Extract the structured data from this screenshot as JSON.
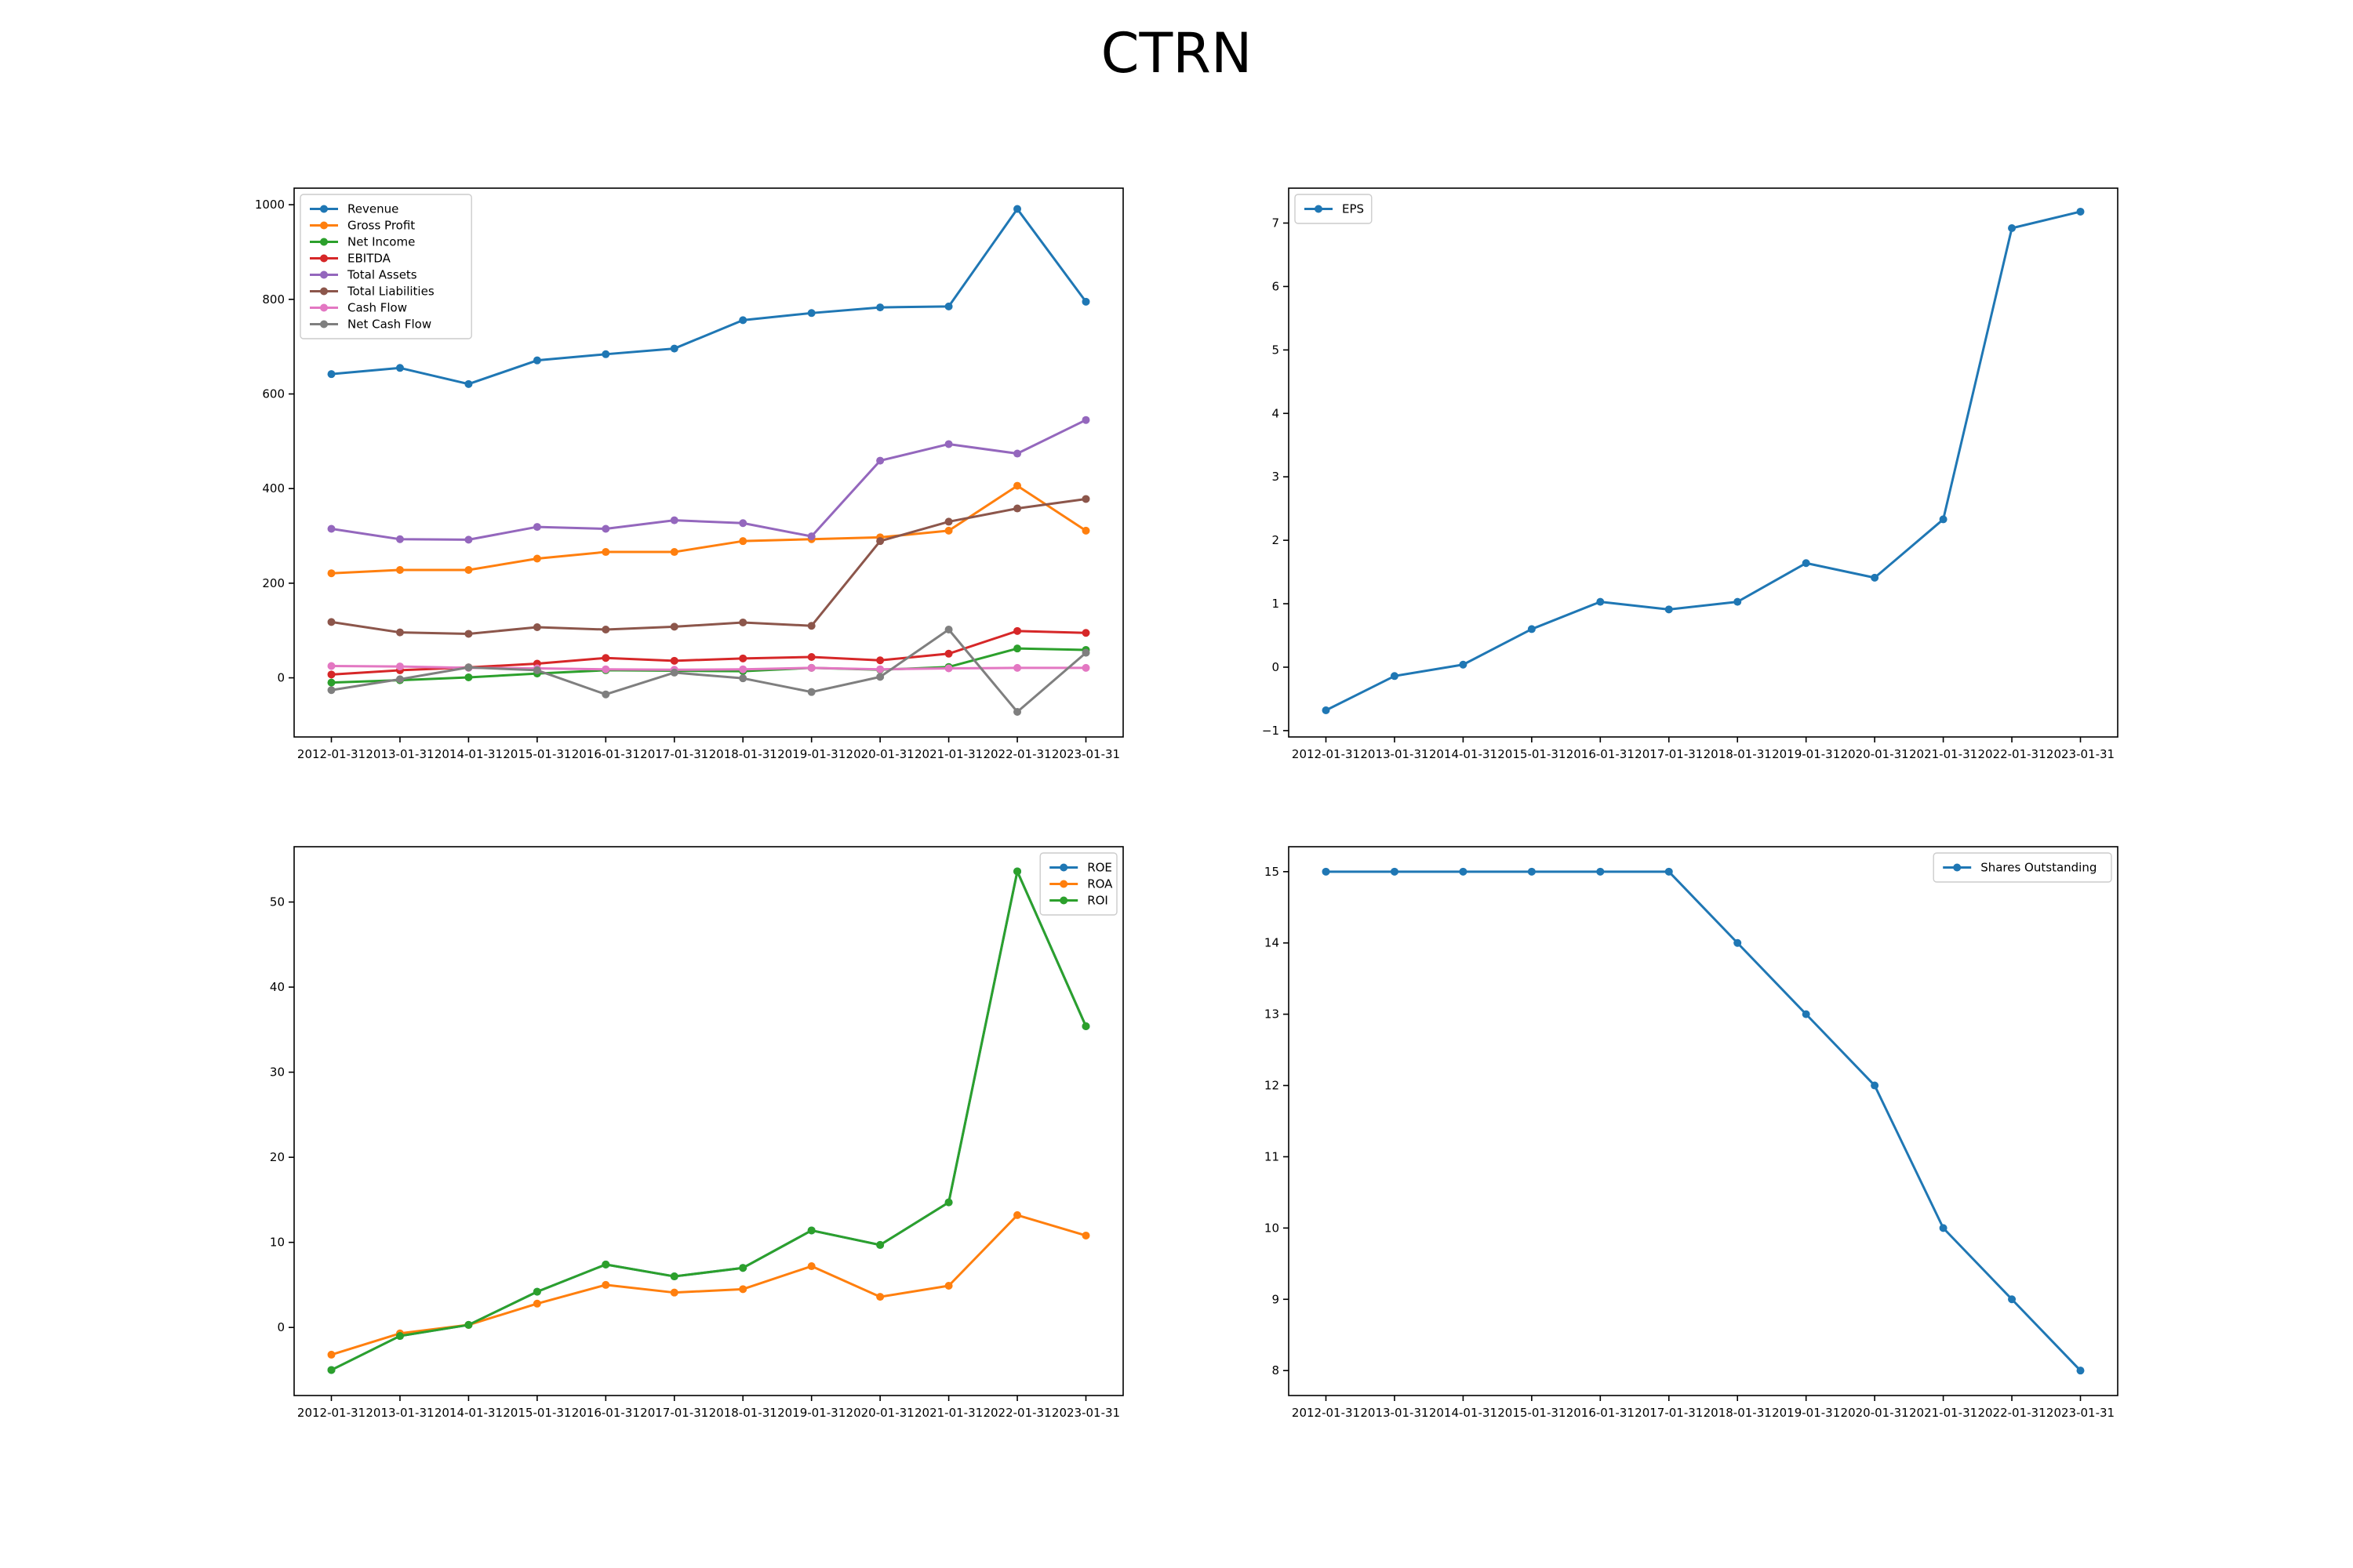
{
  "figure": {
    "title": "CTRN"
  },
  "chart_data": [
    {
      "type": "line",
      "x": [
        "2012-01-31",
        "2013-01-31",
        "2014-01-31",
        "2015-01-31",
        "2016-01-31",
        "2017-01-31",
        "2018-01-31",
        "2019-01-31",
        "2020-01-31",
        "2021-01-31",
        "2022-01-31",
        "2023-01-31"
      ],
      "ylim": [
        -125,
        1035
      ],
      "yticks": [
        0,
        200,
        400,
        600,
        800,
        1000
      ],
      "grid": false,
      "legend": "upper left",
      "series": [
        {
          "name": "Revenue",
          "color": "#1f77b4",
          "values": [
            642,
            655,
            621,
            671,
            684,
            696,
            756,
            771,
            783,
            785,
            991,
            795
          ]
        },
        {
          "name": "Gross Profit",
          "color": "#ff7f0e",
          "values": [
            221,
            228,
            228,
            252,
            266,
            266,
            289,
            293,
            297,
            311,
            406,
            311
          ]
        },
        {
          "name": "Net Income",
          "color": "#2ca02c",
          "values": [
            -10,
            -5,
            1,
            9,
            16,
            15,
            14,
            21,
            17,
            23,
            62,
            59
          ]
        },
        {
          "name": "EBITDA",
          "color": "#d62728",
          "values": [
            7,
            16,
            22,
            30,
            42,
            36,
            41,
            44,
            37,
            51,
            99,
            95
          ]
        },
        {
          "name": "Total Assets",
          "color": "#9467bd",
          "values": [
            315,
            293,
            292,
            319,
            315,
            333,
            327,
            299,
            459,
            494,
            474,
            545
          ]
        },
        {
          "name": "Total Liabilities",
          "color": "#8c564b",
          "values": [
            118,
            96,
            93,
            107,
            102,
            108,
            117,
            110,
            289,
            330,
            358,
            378
          ]
        },
        {
          "name": "Cash Flow",
          "color": "#e377c2",
          "values": [
            25,
            24,
            21,
            20,
            18,
            17,
            18,
            21,
            18,
            20,
            21,
            21
          ]
        },
        {
          "name": "Net Cash Flow",
          "color": "#7f7f7f",
          "values": [
            -26,
            -3,
            22,
            16,
            -35,
            11,
            -1,
            -30,
            2,
            102,
            -72,
            53
          ]
        }
      ]
    },
    {
      "type": "line",
      "x": [
        "2012-01-31",
        "2013-01-31",
        "2014-01-31",
        "2015-01-31",
        "2016-01-31",
        "2017-01-31",
        "2018-01-31",
        "2019-01-31",
        "2020-01-31",
        "2021-01-31",
        "2022-01-31",
        "2023-01-31"
      ],
      "ylim": [
        -1.1,
        7.55
      ],
      "yticks": [
        -1,
        0,
        1,
        2,
        3,
        4,
        5,
        6,
        7
      ],
      "grid": false,
      "legend": "upper left",
      "series": [
        {
          "name": "EPS",
          "color": "#1f77b4",
          "values": [
            -0.68,
            -0.14,
            0.04,
            0.6,
            1.03,
            0.91,
            1.03,
            1.64,
            1.41,
            2.33,
            6.92,
            7.18
          ]
        }
      ]
    },
    {
      "type": "line",
      "x": [
        "2012-01-31",
        "2013-01-31",
        "2014-01-31",
        "2015-01-31",
        "2016-01-31",
        "2017-01-31",
        "2018-01-31",
        "2019-01-31",
        "2020-01-31",
        "2021-01-31",
        "2022-01-31",
        "2023-01-31"
      ],
      "ylim": [
        -8,
        56.5
      ],
      "yticks": [
        0,
        10,
        20,
        30,
        40,
        50
      ],
      "grid": false,
      "legend": "upper right",
      "series": [
        {
          "name": "ROE",
          "color": "#1f77b4",
          "values": [
            -5,
            -1,
            0.3,
            4.2,
            7.4,
            6,
            7,
            11.4,
            9.7,
            14.7,
            53.6,
            35.4
          ]
        },
        {
          "name": "ROA",
          "color": "#ff7f0e",
          "values": [
            -3.2,
            -0.7,
            0.3,
            2.8,
            5,
            4.1,
            4.5,
            7.2,
            3.6,
            4.9,
            13.2,
            10.8
          ]
        },
        {
          "name": "ROI",
          "color": "#2ca02c",
          "values": [
            -5,
            -1,
            0.3,
            4.2,
            7.4,
            6,
            7,
            11.4,
            9.7,
            14.7,
            53.6,
            35.4
          ]
        }
      ]
    },
    {
      "type": "line",
      "x": [
        "2012-01-31",
        "2013-01-31",
        "2014-01-31",
        "2015-01-31",
        "2016-01-31",
        "2017-01-31",
        "2018-01-31",
        "2019-01-31",
        "2020-01-31",
        "2021-01-31",
        "2022-01-31",
        "2023-01-31"
      ],
      "ylim": [
        7.65,
        15.35
      ],
      "yticks": [
        8,
        9,
        10,
        11,
        12,
        13,
        14,
        15
      ],
      "grid": false,
      "legend": "upper right",
      "series": [
        {
          "name": "Shares Outstanding",
          "color": "#1f77b4",
          "values": [
            15,
            15,
            15,
            15,
            15,
            15,
            14,
            13,
            12,
            10,
            9,
            8
          ]
        }
      ]
    }
  ]
}
